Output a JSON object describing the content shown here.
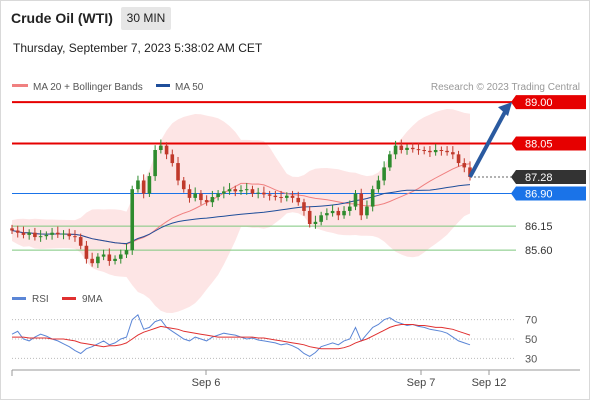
{
  "header": {
    "title": "Crude Oil (WTI)",
    "timeframe": "30 MIN",
    "datetime": "Thursday, September 7, 2023 5:38:02 AM CET"
  },
  "legend": {
    "ma20_label": "MA 20 + Bollinger Bands",
    "ma50_label": "MA 50",
    "copyright": "Research © 2023 Trading Central",
    "rsi_label": "RSI",
    "ma9_label": "9MA"
  },
  "colors": {
    "ma20": "#f08080",
    "ma50": "#1f4e9a",
    "band_fill": "#fde0e0",
    "resistance": "#e60000",
    "support": "#7ec77e",
    "last_price": "#333333",
    "pivot": "#1a73e8",
    "arrow": "#2a5aa0",
    "up_candle": "#2e8b2e",
    "down_candle": "#c0392b",
    "rsi": "#5b86d6",
    "rsi_ma": "#e03030"
  },
  "chart_data": [
    {
      "type": "candlestick",
      "title": "Crude Oil (WTI)",
      "timeframe": "30 MIN",
      "ylim": [
        84.5,
        89.6
      ],
      "x_tick_labels": [
        "Sep 6",
        "Sep 7",
        "Sep 12"
      ],
      "grid": false,
      "levels": [
        {
          "value": 89.0,
          "label": "89.00",
          "kind": "resistance"
        },
        {
          "value": 88.05,
          "label": "88.05",
          "kind": "resistance"
        },
        {
          "value": 87.28,
          "label": "87.28",
          "kind": "last"
        },
        {
          "value": 86.9,
          "label": "86.90",
          "kind": "pivot"
        },
        {
          "value": 86.15,
          "label": "86.15",
          "kind": "support"
        },
        {
          "value": 85.6,
          "label": "85.60",
          "kind": "support"
        }
      ],
      "arrow": {
        "from": 87.28,
        "to": 89.0,
        "direction": "up"
      },
      "closes": [
        86.05,
        86.0,
        85.95,
        86.0,
        85.9,
        85.92,
        85.95,
        86.0,
        85.96,
        85.98,
        85.92,
        85.9,
        85.7,
        85.4,
        85.3,
        85.45,
        85.5,
        85.35,
        85.4,
        85.5,
        85.6,
        87.0,
        87.2,
        86.9,
        87.3,
        87.9,
        88.0,
        87.8,
        87.6,
        87.2,
        87.0,
        86.8,
        86.9,
        86.75,
        86.7,
        86.82,
        86.9,
        86.95,
        87.0,
        86.95,
        86.98,
        87.0,
        86.9,
        86.92,
        86.88,
        86.85,
        86.82,
        86.8,
        86.85,
        86.8,
        86.7,
        86.5,
        86.2,
        86.25,
        86.4,
        86.45,
        86.5,
        86.4,
        86.5,
        86.6,
        86.9,
        86.4,
        86.6,
        87.0,
        87.2,
        87.5,
        87.8,
        88.0,
        87.9,
        87.95,
        87.92,
        87.9,
        87.88,
        87.85,
        87.9,
        87.88,
        87.85,
        87.8,
        87.6,
        87.5,
        87.28
      ]
    },
    {
      "type": "line",
      "series": [
        {
          "name": "RSI",
          "values": [
            55,
            58,
            50,
            48,
            52,
            55,
            53,
            50,
            48,
            45,
            42,
            38,
            35,
            40,
            42,
            45,
            48,
            44,
            46,
            50,
            52,
            70,
            75,
            60,
            62,
            68,
            70,
            62,
            58,
            54,
            50,
            48,
            52,
            50,
            48,
            52,
            54,
            56,
            55,
            54,
            52,
            50,
            51,
            49,
            48,
            47,
            46,
            44,
            45,
            43,
            40,
            35,
            32,
            36,
            42,
            44,
            46,
            44,
            48,
            50,
            62,
            48,
            55,
            62,
            65,
            70,
            72,
            68,
            66,
            64,
            65,
            63,
            62,
            60,
            59,
            58,
            56,
            52,
            48,
            46,
            44
          ]
        },
        {
          "name": "9MA",
          "values": [
            52,
            52,
            52,
            51,
            51,
            51,
            51,
            50,
            50,
            50,
            49,
            48,
            46,
            45,
            44,
            43,
            42,
            43,
            43,
            44,
            46,
            50,
            54,
            57,
            59,
            61,
            63,
            62,
            61,
            60,
            58,
            57,
            56,
            55,
            54,
            53,
            52,
            52,
            52,
            52,
            52,
            52,
            52,
            51,
            51,
            50,
            49,
            48,
            47,
            46,
            45,
            44,
            42,
            41,
            40,
            40,
            40,
            40,
            41,
            43,
            46,
            48,
            50,
            53,
            56,
            59,
            62,
            64,
            65,
            65,
            65,
            64,
            64,
            63,
            62,
            62,
            61,
            60,
            58,
            56,
            54
          ]
        }
      ],
      "ylim": [
        20,
        80
      ],
      "y_tick_labels": [
        "70",
        "50",
        "30"
      ]
    }
  ]
}
